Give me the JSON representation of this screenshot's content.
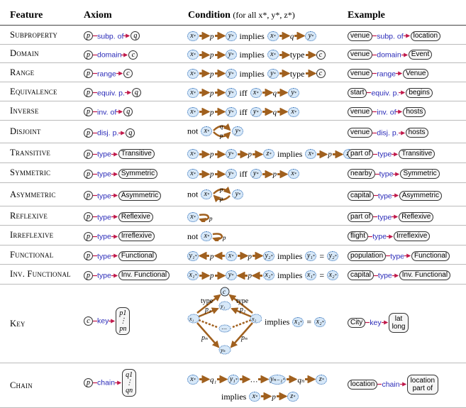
{
  "header": {
    "feature": "Feature",
    "axiom": "Axiom",
    "condition": "Condition",
    "condition_note": "(for all x*, y*, z*)",
    "example": "Example"
  },
  "rows": [
    {
      "feature": "Subproperty",
      "axiom": {
        "left": "p",
        "label": "subp. of",
        "right": "q"
      },
      "condition": "implies",
      "example": {
        "left": "venue",
        "label": "subp. of",
        "right": "location"
      }
    },
    {
      "feature": "Domain",
      "axiom": {
        "left": "p",
        "label": "domain",
        "right": "c"
      },
      "condition": "implies",
      "cond_rel": "type",
      "example": {
        "left": "venue",
        "label": "domain",
        "right": "Event"
      }
    },
    {
      "feature": "Range",
      "axiom": {
        "left": "p",
        "label": "range",
        "right": "c"
      },
      "condition": "implies",
      "cond_rel": "type",
      "example": {
        "left": "venue",
        "label": "range",
        "right": "Venue"
      }
    },
    {
      "feature": "Equivalence",
      "axiom": {
        "left": "p",
        "label": "equiv. p.",
        "right": "q"
      },
      "condition": "iff",
      "example": {
        "left": "start",
        "label": "equiv. p.",
        "right": "begins"
      }
    },
    {
      "feature": "Inverse",
      "axiom": {
        "left": "p",
        "label": "inv. of",
        "right": "q"
      },
      "condition": "iff",
      "example": {
        "left": "venue",
        "label": "inv. of",
        "right": "hosts"
      }
    },
    {
      "feature": "Disjoint",
      "axiom": {
        "left": "p",
        "label": "disj. p.",
        "right": "q"
      },
      "condition": "not",
      "example": {
        "left": "venue",
        "label": "disj. p.",
        "right": "hosts"
      }
    },
    {
      "feature": "Transitive",
      "axiom": {
        "left": "p",
        "label": "type",
        "right": "Transitive"
      },
      "condition": "implies",
      "example": {
        "left": "part of",
        "label": "type",
        "right": "Transitive"
      }
    },
    {
      "feature": "Symmetric",
      "axiom": {
        "left": "p",
        "label": "type",
        "right": "Symmetric"
      },
      "condition": "iff",
      "example": {
        "left": "nearby",
        "label": "type",
        "right": "Symmetric"
      }
    },
    {
      "feature": "Asymmetric",
      "axiom": {
        "left": "p",
        "label": "type",
        "right": "Asymmetric"
      },
      "condition": "not",
      "example": {
        "left": "capital",
        "label": "type",
        "right": "Asymmetric"
      }
    },
    {
      "feature": "Reflexive",
      "axiom": {
        "left": "p",
        "label": "type",
        "right": "Reflexive"
      },
      "condition": "",
      "example": {
        "left": "part of",
        "label": "type",
        "right": "Reflexive"
      }
    },
    {
      "feature": "Irreflexive",
      "axiom": {
        "left": "p",
        "label": "type",
        "right": "Irreflexive"
      },
      "condition": "not",
      "example": {
        "left": "flight",
        "label": "type",
        "right": "Irreflexive"
      }
    },
    {
      "feature": "Functional",
      "axiom": {
        "left": "p",
        "label": "type",
        "right": "Functional"
      },
      "condition": "implies",
      "example": {
        "left": "population",
        "label": "type",
        "right": "Functional"
      }
    },
    {
      "feature": "Inv. Functional",
      "axiom": {
        "left": "p",
        "label": "type",
        "right": "Inv. Functional"
      },
      "condition": "implies",
      "example": {
        "left": "capital",
        "label": "type",
        "right": "Inv. Functional"
      }
    },
    {
      "feature": "Key",
      "axiom": {
        "left": "c",
        "label": "key",
        "right_top": "p1",
        "right_bottom": "pn"
      },
      "condition": "implies",
      "cond_rel": "type",
      "example": {
        "left": "City",
        "label": "key",
        "right_top": "lat",
        "right_bottom": "long"
      }
    },
    {
      "feature": "Chain",
      "axiom": {
        "left": "p",
        "label": "chain",
        "right_top": "q1",
        "right_bottom": "qn"
      },
      "condition": "implies",
      "example": {
        "left": "location",
        "label": "chain",
        "right_top": "location",
        "right_bottom": "part of"
      }
    }
  ],
  "symbols": {
    "x": "x",
    "y": "y",
    "z": "z",
    "p": "p",
    "q": "q",
    "eq": "=",
    "dots": "…"
  },
  "colors": {
    "var_fill": "#d7e8f8",
    "edge_brown": "#a0601e",
    "arrow_red": "#c0184a",
    "label_blue": "#2a2ab8"
  }
}
